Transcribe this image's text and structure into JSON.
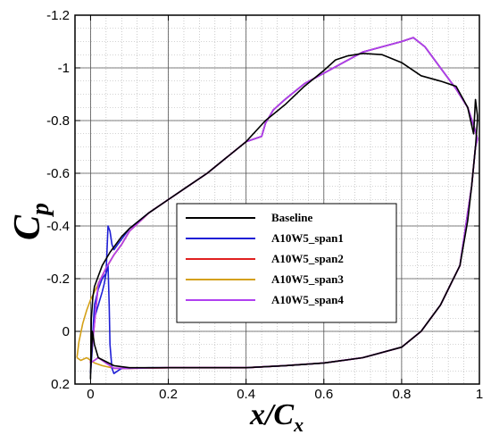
{
  "chart_data": {
    "type": "line",
    "xlabel_main": "x/C",
    "xlabel_sub": "x",
    "ylabel_main": "C",
    "ylabel_sub": "p",
    "xlim": [
      -0.04,
      1.0
    ],
    "ylim_top": -1.2,
    "ylim_bottom": 0.2,
    "y_inverted": true,
    "grid": true,
    "legend_position": "center",
    "x_ticks": [
      "0",
      "0.2",
      "0.4",
      "0.6",
      "0.8",
      "1"
    ],
    "y_ticks": [
      "-1.2",
      "-1",
      "-0.8",
      "-0.6",
      "-0.4",
      "-0.2",
      "0",
      "0.2"
    ],
    "x_tick_values": [
      0,
      0.2,
      0.4,
      0.6,
      0.8,
      1.0
    ],
    "y_tick_values": [
      -1.2,
      -1.0,
      -0.8,
      -0.6,
      -0.4,
      -0.2,
      0,
      0.2
    ],
    "series": [
      {
        "name": "Baseline",
        "color": "#000000",
        "x": [
          0.0,
          0.0,
          0.002,
          0.006,
          0.01,
          0.02,
          0.03,
          0.05,
          0.08,
          0.1,
          0.15,
          0.2,
          0.25,
          0.3,
          0.35,
          0.4,
          0.45,
          0.5,
          0.55,
          0.6,
          0.63,
          0.66,
          0.7,
          0.75,
          0.8,
          0.85,
          0.9,
          0.94,
          0.97,
          0.985,
          0.99,
          0.995,
          0.995,
          0.99,
          0.98,
          0.97,
          0.95,
          0.9,
          0.85,
          0.8,
          0.75,
          0.7,
          0.65,
          0.6,
          0.5,
          0.4,
          0.3,
          0.2,
          0.1,
          0.06,
          0.02,
          0.01,
          0.005,
          0.002,
          0.0
        ],
        "y": [
          0.17,
          0.18,
          -0.05,
          -0.13,
          -0.17,
          -0.21,
          -0.25,
          -0.3,
          -0.36,
          -0.39,
          -0.45,
          -0.5,
          -0.55,
          -0.6,
          -0.66,
          -0.72,
          -0.8,
          -0.86,
          -0.93,
          -0.99,
          -1.03,
          -1.045,
          -1.055,
          -1.05,
          -1.02,
          -0.97,
          -0.95,
          -0.93,
          -0.85,
          -0.75,
          -0.88,
          -0.82,
          -0.8,
          -0.7,
          -0.55,
          -0.42,
          -0.25,
          -0.1,
          0.0,
          0.06,
          0.08,
          0.1,
          0.11,
          0.12,
          0.13,
          0.138,
          0.138,
          0.138,
          0.138,
          0.13,
          0.1,
          0.05,
          0.0,
          0.1,
          0.17
        ]
      },
      {
        "name": "A10W5_span1",
        "color": "#1f1fd6",
        "x": [
          0.0,
          0.01,
          0.02,
          0.03,
          0.04,
          0.045,
          0.05,
          0.055,
          0.06,
          0.07,
          0.08,
          0.1,
          0.15,
          0.2,
          0.25,
          0.3,
          0.35,
          0.4,
          0.44,
          0.45,
          0.47,
          0.5,
          0.55,
          0.6,
          0.65,
          0.7,
          0.75,
          0.8,
          0.83,
          0.86,
          0.9,
          0.94,
          0.97,
          0.99,
          0.995,
          0.99,
          0.98,
          0.95,
          0.9,
          0.85,
          0.8,
          0.7,
          0.6,
          0.5,
          0.4,
          0.3,
          0.2,
          0.15,
          0.1,
          0.08,
          0.06,
          0.055,
          0.05,
          0.048,
          0.045,
          0.04,
          0.035,
          0.03,
          0.02,
          0.01,
          0.0
        ],
        "y": [
          0.16,
          -0.1,
          -0.16,
          -0.2,
          -0.22,
          -0.4,
          -0.38,
          -0.33,
          -0.31,
          -0.33,
          -0.35,
          -0.39,
          -0.45,
          -0.5,
          -0.55,
          -0.6,
          -0.66,
          -0.72,
          -0.74,
          -0.79,
          -0.84,
          -0.88,
          -0.94,
          -0.98,
          -1.02,
          -1.06,
          -1.08,
          -1.1,
          -1.115,
          -1.08,
          -1.0,
          -0.92,
          -0.85,
          -0.76,
          -0.73,
          -0.7,
          -0.55,
          -0.25,
          -0.1,
          0.0,
          0.06,
          0.1,
          0.12,
          0.13,
          0.138,
          0.138,
          0.138,
          0.138,
          0.14,
          0.14,
          0.16,
          0.14,
          0.05,
          -0.1,
          -0.25,
          -0.22,
          -0.18,
          -0.15,
          -0.1,
          -0.05,
          0.16
        ]
      },
      {
        "name": "A10W5_span2",
        "color": "#e02020",
        "x": [
          0.0,
          0.02,
          0.04,
          0.06,
          0.08,
          0.1,
          0.15,
          0.2,
          0.25,
          0.3,
          0.35,
          0.4,
          0.44,
          0.45,
          0.47,
          0.5,
          0.55,
          0.6,
          0.65,
          0.7,
          0.75,
          0.8,
          0.83,
          0.86,
          0.9,
          0.94,
          0.97,
          0.99,
          0.995,
          0.99,
          0.98,
          0.95,
          0.9,
          0.85,
          0.8,
          0.7,
          0.6,
          0.5,
          0.4,
          0.3,
          0.2,
          0.1,
          0.08,
          0.06,
          0.04,
          0.02,
          0.0
        ],
        "y": [
          0.12,
          -0.18,
          -0.24,
          -0.29,
          -0.33,
          -0.38,
          -0.45,
          -0.5,
          -0.55,
          -0.6,
          -0.66,
          -0.72,
          -0.74,
          -0.79,
          -0.84,
          -0.88,
          -0.94,
          -0.98,
          -1.02,
          -1.06,
          -1.08,
          -1.1,
          -1.115,
          -1.08,
          -1.0,
          -0.92,
          -0.85,
          -0.76,
          -0.73,
          -0.7,
          -0.55,
          -0.25,
          -0.1,
          0.0,
          0.06,
          0.1,
          0.12,
          0.13,
          0.138,
          0.138,
          0.138,
          0.14,
          0.14,
          0.14,
          0.12,
          0.1,
          0.12
        ]
      },
      {
        "name": "A10W5_span3",
        "color": "#d4a017",
        "x": [
          -0.035,
          -0.03,
          -0.02,
          -0.01,
          0.0,
          0.01,
          0.02,
          0.04,
          0.06,
          0.08,
          0.1,
          0.15,
          0.2,
          0.25,
          0.3,
          0.35,
          0.4,
          0.44,
          0.45,
          0.47,
          0.5,
          0.55,
          0.6,
          0.65,
          0.7,
          0.75,
          0.8,
          0.83,
          0.86,
          0.9,
          0.94,
          0.97,
          0.99,
          0.995,
          0.99,
          0.98,
          0.95,
          0.9,
          0.85,
          0.8,
          0.7,
          0.6,
          0.5,
          0.4,
          0.3,
          0.2,
          0.1,
          0.06,
          0.03,
          0.01,
          -0.01,
          -0.025,
          -0.035
        ],
        "y": [
          0.1,
          0.04,
          -0.03,
          -0.08,
          -0.12,
          -0.15,
          -0.18,
          -0.24,
          -0.29,
          -0.33,
          -0.38,
          -0.45,
          -0.5,
          -0.55,
          -0.6,
          -0.66,
          -0.72,
          -0.74,
          -0.79,
          -0.84,
          -0.88,
          -0.94,
          -0.98,
          -1.02,
          -1.06,
          -1.08,
          -1.1,
          -1.115,
          -1.08,
          -1.0,
          -0.92,
          -0.85,
          -0.76,
          -0.73,
          -0.7,
          -0.55,
          -0.25,
          -0.1,
          0.0,
          0.06,
          0.1,
          0.12,
          0.13,
          0.138,
          0.138,
          0.138,
          0.14,
          0.14,
          0.13,
          0.12,
          0.1,
          0.11,
          0.1
        ]
      },
      {
        "name": "A10W5_span4",
        "color": "#b040f0",
        "x": [
          0.0,
          0.02,
          0.04,
          0.06,
          0.08,
          0.1,
          0.15,
          0.2,
          0.25,
          0.3,
          0.35,
          0.4,
          0.44,
          0.45,
          0.47,
          0.5,
          0.55,
          0.6,
          0.65,
          0.7,
          0.75,
          0.8,
          0.83,
          0.86,
          0.9,
          0.94,
          0.97,
          0.99,
          0.995,
          0.99,
          0.98,
          0.95,
          0.9,
          0.85,
          0.8,
          0.7,
          0.6,
          0.5,
          0.4,
          0.3,
          0.2,
          0.1,
          0.08,
          0.06,
          0.04,
          0.02,
          0.0
        ],
        "y": [
          0.12,
          -0.18,
          -0.24,
          -0.29,
          -0.33,
          -0.38,
          -0.45,
          -0.5,
          -0.55,
          -0.6,
          -0.66,
          -0.72,
          -0.74,
          -0.79,
          -0.84,
          -0.88,
          -0.94,
          -0.98,
          -1.02,
          -1.06,
          -1.08,
          -1.1,
          -1.115,
          -1.08,
          -1.0,
          -0.92,
          -0.85,
          -0.76,
          -0.73,
          -0.7,
          -0.55,
          -0.25,
          -0.1,
          0.0,
          0.06,
          0.1,
          0.12,
          0.13,
          0.138,
          0.138,
          0.138,
          0.14,
          0.14,
          0.14,
          0.12,
          0.1,
          0.12
        ]
      },
      {
        "name": "",
        "color": "#ff30d0",
        "x": [
          0.0,
          0.02,
          0.04,
          0.06,
          0.08,
          0.1,
          0.15,
          0.2,
          0.25,
          0.3,
          0.35,
          0.4,
          0.44,
          0.45,
          0.47,
          0.5,
          0.55,
          0.6,
          0.65,
          0.7,
          0.75,
          0.8,
          0.83,
          0.86,
          0.9,
          0.94,
          0.97,
          0.99,
          0.995,
          0.99,
          0.98,
          0.95,
          0.9,
          0.85,
          0.8,
          0.7,
          0.6,
          0.5,
          0.4,
          0.3,
          0.2,
          0.1,
          0.08,
          0.06
        ],
        "y": [
          0.12,
          -0.18,
          -0.24,
          -0.29,
          -0.33,
          -0.38,
          -0.45,
          -0.5,
          -0.55,
          -0.6,
          -0.66,
          -0.72,
          -0.74,
          -0.79,
          -0.84,
          -0.88,
          -0.94,
          -0.98,
          -1.02,
          -1.06,
          -1.08,
          -1.1,
          -1.115,
          -1.08,
          -1.0,
          -0.92,
          -0.85,
          -0.76,
          -0.73,
          -0.7,
          -0.55,
          -0.25,
          -0.1,
          0.0,
          0.06,
          0.1,
          0.12,
          0.13,
          0.138,
          0.138,
          0.138,
          0.14,
          0.14,
          0.14
        ]
      }
    ],
    "legend": [
      {
        "label": "Baseline",
        "color": "#000000"
      },
      {
        "label": "A10W5_span1",
        "color": "#1f1fd6"
      },
      {
        "label": "A10W5_span2",
        "color": "#e02020"
      },
      {
        "label": "A10W5_span3",
        "color": "#d4a017"
      },
      {
        "label": "A10W5_span4",
        "color": "#b040f0"
      }
    ]
  }
}
